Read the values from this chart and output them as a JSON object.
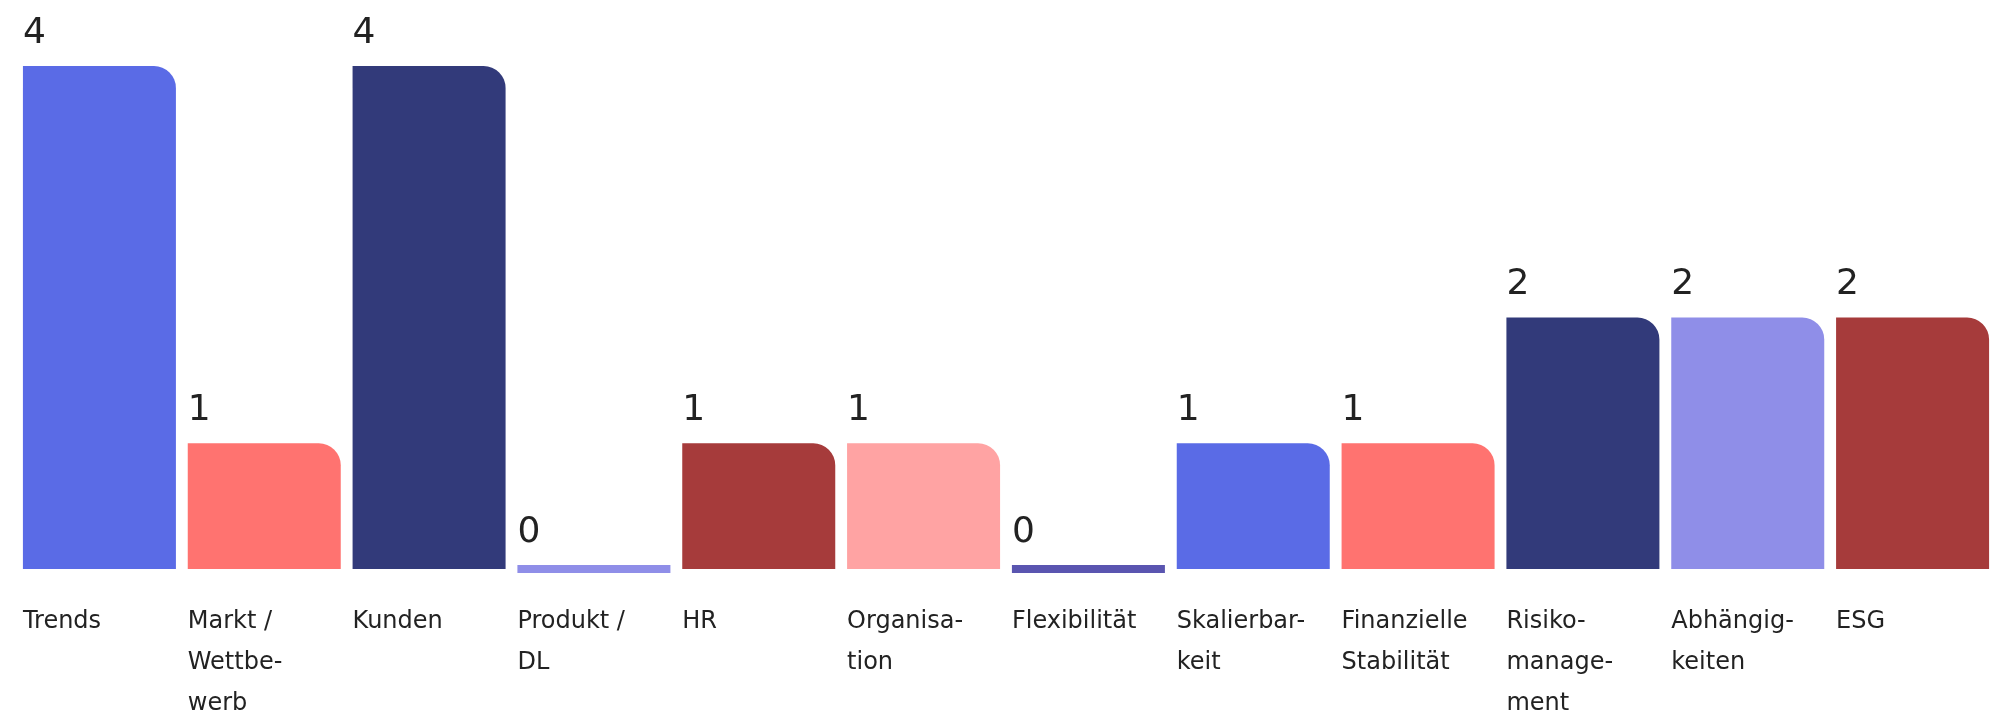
{
  "chart_data": {
    "type": "bar",
    "categories": [
      "Trends",
      "Markt /\nWettbe-\nwerb",
      "Kunden",
      "Produkt /\nDL",
      "HR",
      "Organisa-\ntion",
      "Flexibilität",
      "Skalierbar-\nkeit",
      "Finanzielle\nStabilität",
      "Risiko-\nmanage-\nment",
      "Abhängig-\nkeiten",
      "ESG"
    ],
    "values": [
      4,
      1,
      4,
      0,
      1,
      1,
      0,
      1,
      1,
      2,
      2,
      2
    ],
    "colors": [
      "#5a6be6",
      "#ff7370",
      "#323a7a",
      "#8f8ee8",
      "#a63b3b",
      "#ffa3a3",
      "#5a55b0",
      "#5a6be6",
      "#ff7370",
      "#323a7a",
      "#8f8ee8",
      "#a63b3b"
    ],
    "ylim": [
      0,
      4
    ],
    "tick_labels": "x",
    "grid": false,
    "data_labels": true
  }
}
